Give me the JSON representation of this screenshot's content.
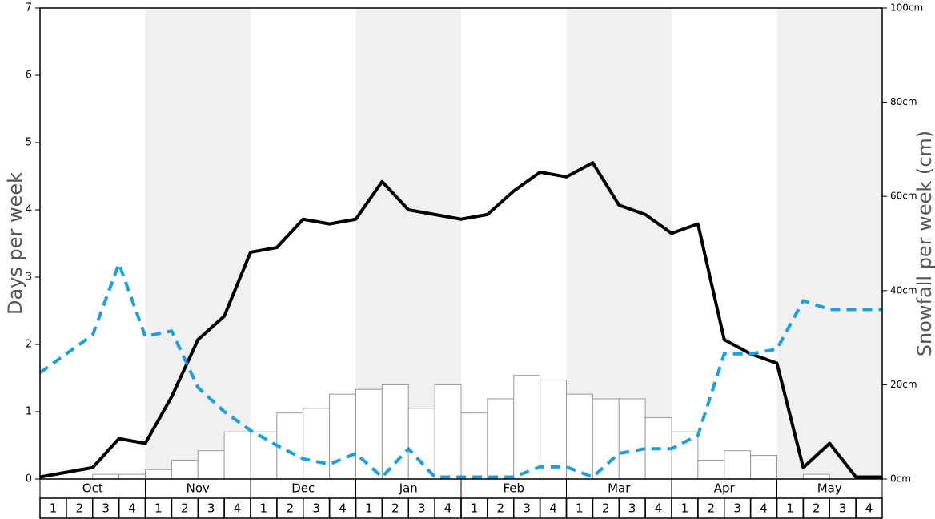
{
  "chart_data": {
    "type": "bar",
    "y_label": "Days per week",
    "y2_label": "Snowfall per week (cm)",
    "months": [
      "Oct",
      "Nov",
      "Dec",
      "Jan",
      "Feb",
      "Mar",
      "Apr",
      "May"
    ],
    "weeks": [
      "1",
      "2",
      "3",
      "4"
    ],
    "ylim": [
      0,
      7
    ],
    "yticks": [
      0,
      1,
      2,
      3,
      4,
      5,
      6,
      7
    ],
    "y2lim": [
      0,
      100
    ],
    "y2ticks": [
      {
        "value": 0,
        "label": "0cm"
      },
      {
        "value": 20,
        "label": "20cm"
      },
      {
        "value": 40,
        "label": "40cm"
      },
      {
        "value": 60,
        "label": "60cm"
      },
      {
        "value": 80,
        "label": "80cm"
      },
      {
        "value": 100,
        "label": "100cm"
      }
    ],
    "series": [
      {
        "type": "bar",
        "axis": "y2",
        "color": "#ffffff",
        "values": [
          0,
          0,
          1,
          1,
          2,
          4,
          6,
          10,
          10,
          14,
          15,
          18,
          19,
          20,
          15,
          20,
          14,
          17,
          22,
          21,
          18,
          17,
          17,
          13,
          10,
          4,
          6,
          5,
          0,
          1,
          0,
          0
        ]
      },
      {
        "type": "line",
        "color": "#000000",
        "values": [
          0.03,
          0.1,
          0.17,
          0.6,
          0.53,
          1.22,
          2.07,
          2.42,
          3.37,
          3.44,
          3.86,
          3.79,
          3.86,
          4.42,
          4.0,
          3.93,
          3.86,
          3.93,
          4.28,
          4.56,
          4.49,
          4.7,
          4.07,
          3.93,
          3.65,
          3.79,
          2.07,
          1.86,
          1.72,
          0.17,
          0.53,
          0.03,
          0.03
        ]
      },
      {
        "type": "line",
        "dashed": true,
        "color": "#1a9fe0",
        "values": [
          1.58,
          1.86,
          2.14,
          3.2,
          2.12,
          2.2,
          1.36,
          1.0,
          0.72,
          0.5,
          0.3,
          0.22,
          0.38,
          0.03,
          0.45,
          0.03,
          0.03,
          0.03,
          0.03,
          0.18,
          0.18,
          0.03,
          0.38,
          0.45,
          0.45,
          0.65,
          1.86,
          1.86,
          1.93,
          2.65,
          2.52,
          2.52,
          2.52
        ]
      }
    ]
  }
}
